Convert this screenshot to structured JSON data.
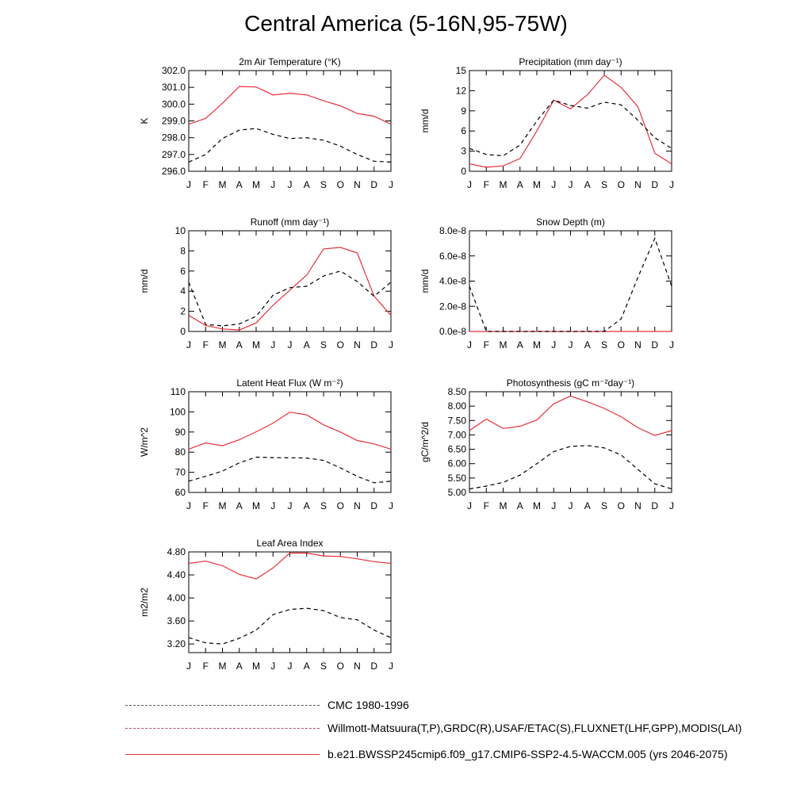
{
  "figure_title": "Central America (5-16N,95-75W)",
  "colors": {
    "model": "#e8303a",
    "obs": "#000000",
    "obs2": "#3333cc"
  },
  "legend": [
    {
      "label": "CMC 1980-1996",
      "style": "cmc"
    },
    {
      "label": "Willmott-Matsuura(T,P),GRDC(R),USAF/ETAC(S),FLUXNET(LHF,GPP),MODIS(LAI)",
      "style": "obs"
    },
    {
      "label": "b.e21.BWSSP245cmip6.f09_g17.CMIP6-SSP2-4.5-WACCM.005 (yrs 2046-2075)",
      "style": "model"
    }
  ],
  "chart_data": [
    {
      "type": "line",
      "title": "2m Air Temperature (°K)",
      "xlabel": "",
      "ylabel": "K",
      "categories": [
        "J",
        "F",
        "M",
        "A",
        "M",
        "J",
        "J",
        "A",
        "S",
        "O",
        "N",
        "D",
        "J"
      ],
      "ylim": [
        296.0,
        302.0
      ],
      "yticks": [
        "296.0",
        "297.0",
        "298.0",
        "299.0",
        "300.0",
        "301.0",
        "302.0"
      ],
      "series": [
        {
          "name": "model",
          "values": [
            298.8,
            299.15,
            300.05,
            301.05,
            301.02,
            300.55,
            300.65,
            300.55,
            300.2,
            299.9,
            299.45,
            299.28,
            298.8
          ]
        },
        {
          "name": "obs",
          "values": [
            296.55,
            297.0,
            297.95,
            298.45,
            298.55,
            298.2,
            297.95,
            298.0,
            297.85,
            297.5,
            297.0,
            296.6,
            296.55
          ]
        }
      ]
    },
    {
      "type": "line",
      "title": "Precipitation (mm day⁻¹)",
      "xlabel": "",
      "ylabel": "mm/d",
      "categories": [
        "J",
        "F",
        "M",
        "A",
        "M",
        "J",
        "J",
        "A",
        "S",
        "O",
        "N",
        "D",
        "J"
      ],
      "ylim": [
        0,
        15
      ],
      "yticks": [
        "0",
        "3",
        "6",
        "9",
        "12",
        "15"
      ],
      "series": [
        {
          "name": "model",
          "values": [
            1.1,
            0.6,
            0.8,
            1.9,
            6.0,
            10.6,
            9.3,
            11.4,
            14.3,
            12.5,
            9.6,
            2.7,
            1.1
          ]
        },
        {
          "name": "obs",
          "values": [
            3.4,
            2.5,
            2.3,
            3.9,
            7.5,
            10.6,
            9.8,
            9.4,
            10.3,
            9.9,
            7.6,
            5.0,
            3.4
          ]
        }
      ]
    },
    {
      "type": "line",
      "title": "Runoff (mm day⁻¹)",
      "xlabel": "",
      "ylabel": "mm/d",
      "categories": [
        "J",
        "F",
        "M",
        "A",
        "M",
        "J",
        "J",
        "A",
        "S",
        "O",
        "N",
        "D",
        "J"
      ],
      "ylim": [
        0,
        10
      ],
      "yticks": [
        "0",
        "2",
        "4",
        "6",
        "8",
        "10"
      ],
      "series": [
        {
          "name": "model",
          "values": [
            1.6,
            0.6,
            0.25,
            0.15,
            0.85,
            2.6,
            4.1,
            5.6,
            8.2,
            8.35,
            7.8,
            3.5,
            1.6
          ]
        },
        {
          "name": "obs",
          "values": [
            4.9,
            0.7,
            0.55,
            0.75,
            1.5,
            3.6,
            4.35,
            4.5,
            5.5,
            6.0,
            4.95,
            3.5,
            4.9
          ]
        }
      ]
    },
    {
      "type": "line",
      "title": "Snow Depth (m)",
      "xlabel": "",
      "ylabel": "mm/d",
      "categories": [
        "J",
        "F",
        "M",
        "A",
        "M",
        "J",
        "J",
        "A",
        "S",
        "O",
        "N",
        "D",
        "J"
      ],
      "ylim": [
        0,
        8e-08
      ],
      "yticks": [
        "0.0e-8",
        "2.0e-8",
        "4.0e-8",
        "6.0e-8",
        "8.0e-8"
      ],
      "series": [
        {
          "name": "model",
          "values": [
            0,
            0,
            0,
            0,
            0,
            0,
            0,
            0,
            0,
            0,
            0,
            0,
            0
          ]
        },
        {
          "name": "obs",
          "values": [
            3.6e-08,
            0,
            0,
            0,
            0,
            0,
            0,
            0,
            0,
            1e-08,
            4.3e-08,
            7.4e-08,
            3.6e-08
          ]
        }
      ]
    },
    {
      "type": "line",
      "title": "Latent Heat Flux (W m⁻²)",
      "xlabel": "",
      "ylabel": "W/m^2",
      "categories": [
        "J",
        "F",
        "M",
        "A",
        "M",
        "J",
        "J",
        "A",
        "S",
        "O",
        "N",
        "D",
        "J"
      ],
      "ylim": [
        60,
        110
      ],
      "yticks": [
        "60",
        "70",
        "80",
        "90",
        "100",
        "110"
      ],
      "series": [
        {
          "name": "model",
          "values": [
            81.5,
            84.6,
            83.2,
            86.2,
            90.1,
            94.4,
            99.9,
            98.5,
            93.6,
            90.0,
            85.8,
            84.1,
            81.5
          ]
        },
        {
          "name": "obs",
          "values": [
            65.6,
            68.0,
            70.6,
            74.7,
            77.5,
            77.3,
            77.2,
            77.1,
            75.9,
            72.2,
            68.0,
            64.8,
            65.6
          ]
        }
      ]
    },
    {
      "type": "line",
      "title": "Photosynthesis (gC m⁻²day⁻¹)",
      "xlabel": "",
      "ylabel": "gC/m^2/d",
      "categories": [
        "J",
        "F",
        "M",
        "A",
        "M",
        "J",
        "J",
        "A",
        "S",
        "O",
        "N",
        "D",
        "J"
      ],
      "ylim": [
        5.0,
        8.5
      ],
      "yticks": [
        "5.00",
        "5.50",
        "6.00",
        "6.50",
        "7.00",
        "7.50",
        "8.00",
        "8.50"
      ],
      "series": [
        {
          "name": "model",
          "values": [
            7.15,
            7.55,
            7.22,
            7.3,
            7.52,
            8.08,
            8.35,
            8.15,
            7.92,
            7.63,
            7.25,
            6.98,
            7.15
          ]
        },
        {
          "name": "obs",
          "values": [
            5.12,
            5.22,
            5.35,
            5.6,
            6.0,
            6.42,
            6.6,
            6.63,
            6.55,
            6.3,
            5.8,
            5.3,
            5.12
          ]
        }
      ]
    },
    {
      "type": "line",
      "title": "Leaf Area Index",
      "xlabel": "",
      "ylabel": "m2/m2",
      "categories": [
        "J",
        "F",
        "M",
        "A",
        "M",
        "J",
        "J",
        "A",
        "S",
        "O",
        "N",
        "D",
        "J"
      ],
      "ylim": [
        3.05,
        4.8
      ],
      "yticks": [
        "3.20",
        "3.60",
        "4.00",
        "4.40",
        "4.80"
      ],
      "series": [
        {
          "name": "model",
          "values": [
            4.6,
            4.64,
            4.56,
            4.41,
            4.33,
            4.52,
            4.78,
            4.78,
            4.73,
            4.72,
            4.68,
            4.63,
            4.6
          ]
        },
        {
          "name": "obs",
          "values": [
            3.31,
            3.22,
            3.2,
            3.3,
            3.44,
            3.71,
            3.8,
            3.82,
            3.78,
            3.66,
            3.62,
            3.44,
            3.31
          ]
        }
      ]
    }
  ]
}
